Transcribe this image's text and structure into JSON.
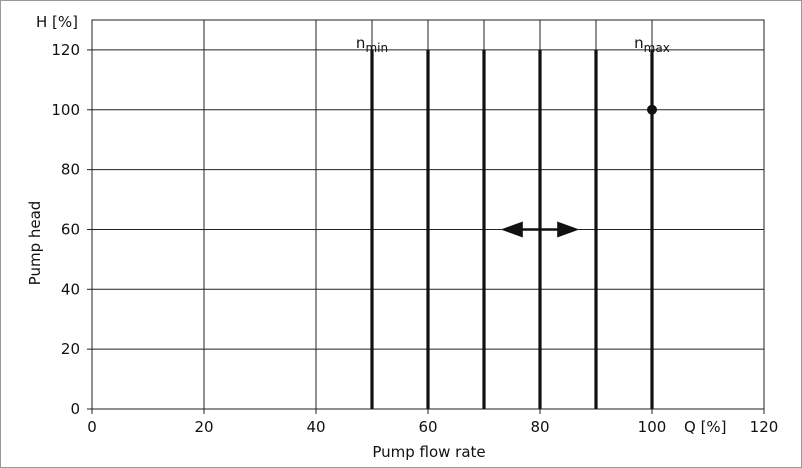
{
  "chart_data": {
    "type": "line",
    "title": "",
    "xlabel": "Pump flow rate",
    "ylabel": "Pump head",
    "x_unit_label": "Q [%]",
    "y_unit_label": "H [%]",
    "xlim": [
      0,
      120
    ],
    "ylim": [
      0,
      130
    ],
    "x_ticks": [
      0,
      20,
      40,
      60,
      80,
      100,
      120
    ],
    "y_ticks": [
      0,
      20,
      40,
      60,
      80,
      100,
      120
    ],
    "x_ticks_shown": [
      "0",
      "20",
      "40",
      "60",
      "80",
      "100",
      "120"
    ],
    "y_ticks_shown": [
      "0",
      "20",
      "40",
      "60",
      "80",
      "100",
      "120"
    ],
    "grid": true,
    "grid_x": [
      20,
      40,
      50,
      60,
      70,
      80,
      90,
      100
    ],
    "grid_y": [
      20,
      40,
      60,
      80,
      100,
      120
    ],
    "series": [
      {
        "values": [
          [
            50,
            0
          ],
          [
            50,
            120
          ]
        ]
      },
      {
        "values": [
          [
            60,
            0
          ],
          [
            60,
            120
          ]
        ]
      },
      {
        "values": [
          [
            70,
            0
          ],
          [
            70,
            120
          ]
        ]
      },
      {
        "values": [
          [
            80,
            0
          ],
          [
            80,
            120
          ]
        ]
      },
      {
        "values": [
          [
            90,
            0
          ],
          [
            90,
            120
          ]
        ]
      },
      {
        "values": [
          [
            100,
            0
          ],
          [
            100,
            120
          ]
        ]
      }
    ],
    "annotations": {
      "n_min": {
        "base": "n",
        "sub": "min",
        "x": 50
      },
      "n_max": {
        "base": "n",
        "sub": "max",
        "x": 100
      },
      "operating_point": {
        "x": 100,
        "y": 100
      },
      "double_arrow": {
        "x_from": 73,
        "x_to": 87,
        "y": 60
      }
    },
    "colors": {
      "line": "#111111",
      "grid": "#222222",
      "frame": "#9a9a9a"
    }
  }
}
